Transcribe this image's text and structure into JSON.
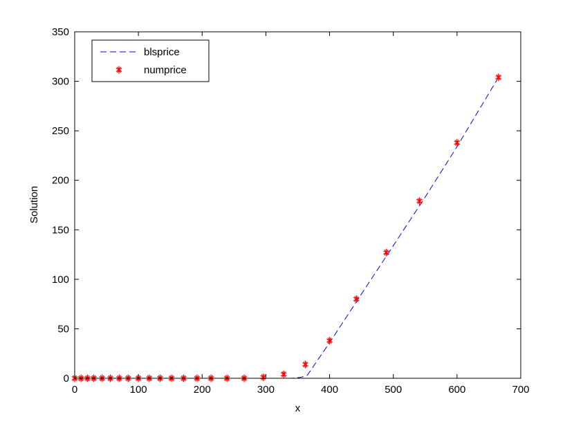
{
  "chart_data": {
    "type": "line",
    "title": "",
    "xlabel": "x",
    "ylabel": "Solution",
    "xlim": [
      0,
      700
    ],
    "ylim": [
      0,
      350
    ],
    "xticks": [
      0,
      100,
      200,
      300,
      400,
      500,
      600,
      700
    ],
    "yticks": [
      0,
      50,
      100,
      150,
      200,
      250,
      300,
      350
    ],
    "grid": false,
    "legend": {
      "placement": "top-left"
    },
    "series": [
      {
        "name": "blsprice",
        "style": "dashed-line",
        "color": "#0000ff",
        "x": [
          0,
          100,
          200,
          300,
          340,
          355,
          365,
          400,
          450,
          500,
          550,
          600,
          665
        ],
        "y": [
          0,
          0,
          0,
          0,
          0,
          1,
          3,
          36,
          85,
          134,
          183,
          234,
          304
        ]
      },
      {
        "name": "numprice",
        "style": "star-markers",
        "color": "#ff0000",
        "x": [
          0,
          10,
          20,
          30,
          43,
          56,
          70,
          84,
          100,
          117,
          134,
          152,
          171,
          192,
          214,
          239,
          266,
          296,
          328,
          362,
          400,
          442,
          489,
          541,
          600,
          665
        ],
        "y": [
          0,
          0,
          0,
          0,
          0,
          0,
          0,
          0,
          0,
          0,
          0,
          0,
          0,
          0,
          0,
          0,
          0,
          1,
          4,
          14,
          38,
          80,
          127,
          179,
          238,
          304
        ]
      }
    ]
  }
}
